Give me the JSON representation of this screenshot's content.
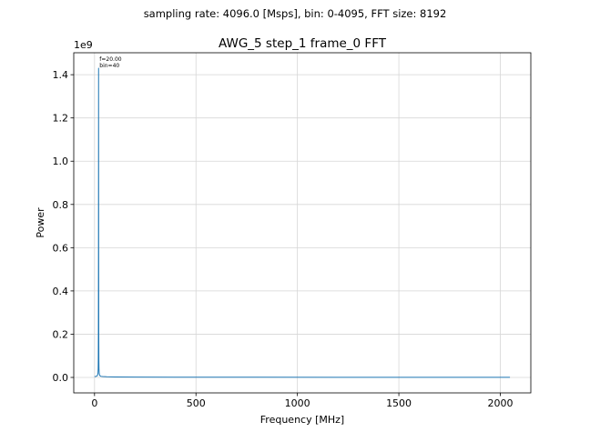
{
  "header": {
    "suptitle": "sampling rate: 4096.0 [Msps],  bin: 0-4095,  FFT size: 8192"
  },
  "chart_data": {
    "type": "line",
    "title": "AWG_5 step_1 frame_0 FFT",
    "xlabel": "Frequency [MHz]",
    "ylabel": "Power",
    "y_offset_label": "1e9",
    "y_scale": 1000000000,
    "xlim": [
      -102.4,
      2150.4
    ],
    "ylim": [
      -0.0715,
      1.5015
    ],
    "x_ticks": [
      0,
      500,
      1000,
      1500,
      2000
    ],
    "x_tick_labels": [
      "0",
      "500",
      "1000",
      "1500",
      "2000"
    ],
    "y_ticks": [
      0.0,
      0.2,
      0.4,
      0.6,
      0.8,
      1.0,
      1.2,
      1.4
    ],
    "y_tick_labels": [
      "0.0",
      "0.2",
      "0.4",
      "0.6",
      "0.8",
      "1.0",
      "1.2",
      "1.4"
    ],
    "grid": true,
    "series": [
      {
        "color": "#1f77b4",
        "x": [
          0,
          4,
          8,
          12,
          14,
          16,
          17,
          18,
          18.5,
          19,
          19.5,
          20,
          20.5,
          21,
          21.5,
          22,
          23,
          24,
          26,
          28,
          32,
          40,
          60,
          100,
          200,
          400,
          800,
          1200,
          1600,
          2047.5
        ],
        "y": [
          0.004,
          0.004,
          0.005,
          0.007,
          0.009,
          0.014,
          0.02,
          0.04,
          0.08,
          0.2,
          0.6,
          1.43,
          0.6,
          0.2,
          0.08,
          0.04,
          0.02,
          0.014,
          0.009,
          0.007,
          0.005,
          0.004,
          0.003,
          0.002,
          0.0015,
          0.001,
          0.0008,
          0.0006,
          0.0005,
          0.0004
        ]
      }
    ],
    "annotations": [
      {
        "lines": [
          "f=20.00",
          "bin=40"
        ],
        "x": 20,
        "y": 1.43
      }
    ]
  }
}
